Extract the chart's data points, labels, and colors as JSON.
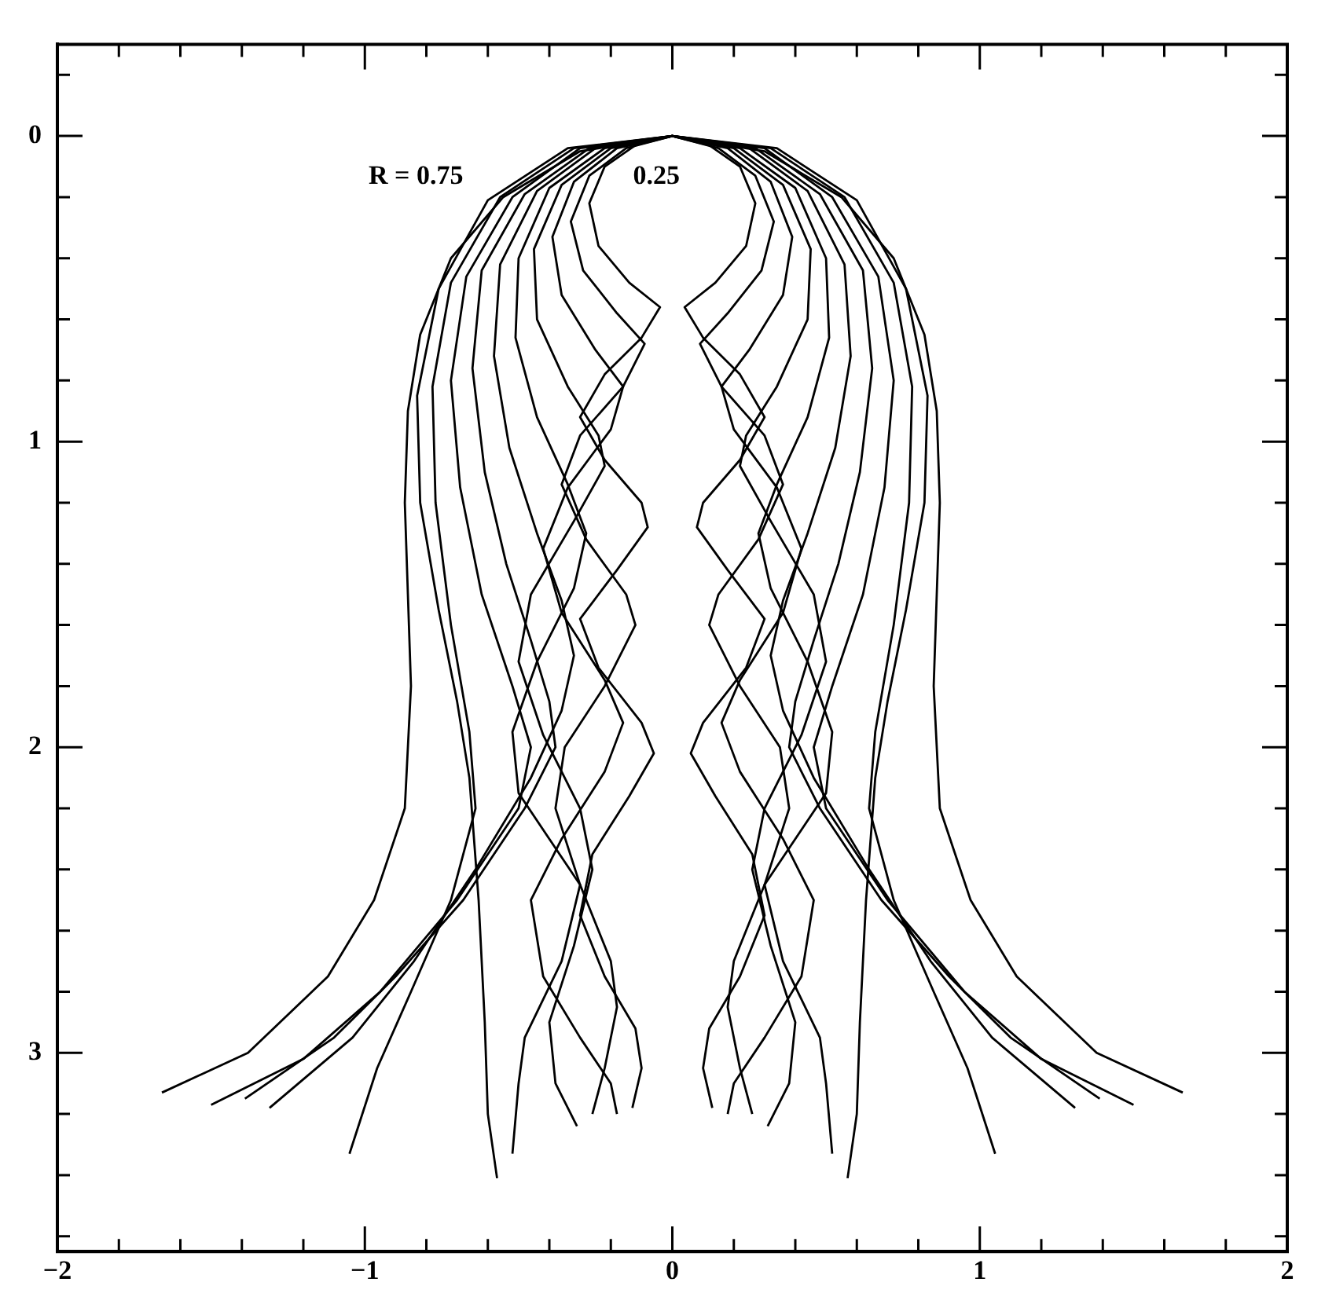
{
  "chart_data": {
    "type": "line",
    "xlim": [
      -2,
      2
    ],
    "ylim": [
      3.65,
      -0.3
    ],
    "xticks": [
      -2,
      {
        "value": -1.8,
        "label": null
      },
      {
        "value": -1.6,
        "label": null
      },
      {
        "value": -1.4,
        "label": null
      },
      {
        "value": -1.2,
        "label": null
      },
      -1,
      {
        "value": -0.8,
        "label": null
      },
      {
        "value": -0.6,
        "label": null
      },
      {
        "value": -0.4,
        "label": null
      },
      {
        "value": -0.2,
        "label": null
      },
      0,
      {
        "value": 0.2,
        "label": null
      },
      {
        "value": 0.4,
        "label": null
      },
      {
        "value": 0.6,
        "label": null
      },
      {
        "value": 0.8,
        "label": null
      },
      1,
      {
        "value": 1.2,
        "label": null
      },
      {
        "value": 1.4,
        "label": null
      },
      {
        "value": 1.6,
        "label": null
      },
      {
        "value": 1.8,
        "label": null
      },
      2
    ],
    "yticks": [
      {
        "value": -0.2,
        "label": null
      },
      0,
      {
        "value": 0.2,
        "label": null
      },
      {
        "value": 0.4,
        "label": null
      },
      {
        "value": 0.6,
        "label": null
      },
      {
        "value": 0.8,
        "label": null
      },
      1,
      {
        "value": 1.2,
        "label": null
      },
      {
        "value": 1.4,
        "label": null
      },
      {
        "value": 1.6,
        "label": null
      },
      {
        "value": 1.8,
        "label": null
      },
      2,
      {
        "value": 2.2,
        "label": null
      },
      {
        "value": 2.4,
        "label": null
      },
      {
        "value": 2.6,
        "label": null
      },
      {
        "value": 2.8,
        "label": null
      },
      3,
      {
        "value": 3.2,
        "label": null
      },
      {
        "value": 3.4,
        "label": null
      },
      {
        "value": 3.6,
        "label": null
      }
    ],
    "grid": false,
    "legend": false,
    "marker": "none",
    "line_style": "solid",
    "annotations": [
      "R = 0.75",
      "0.25"
    ],
    "series": [
      {
        "color": "#000000",
        "x": [
          -1.66,
          -1.38,
          -1.12,
          -0.97,
          -0.87,
          -0.85,
          -0.86,
          -0.87,
          -0.86,
          -0.82,
          -0.72,
          -0.55,
          -0.3,
          0,
          0.3,
          0.55,
          0.72,
          0.82,
          0.86,
          0.87,
          0.86,
          0.85,
          0.87,
          0.97,
          1.12,
          1.38,
          1.66
        ],
        "values": [
          3.13,
          3.0,
          2.75,
          2.5,
          2.2,
          1.8,
          1.5,
          1.2,
          0.9,
          0.65,
          0.4,
          0.2,
          0.05,
          0,
          0.05,
          0.2,
          0.4,
          0.65,
          0.9,
          1.2,
          1.5,
          1.8,
          2.2,
          2.5,
          2.75,
          3.0,
          3.13
        ]
      },
      {
        "color": "#000000",
        "x": [
          -0.57,
          -0.6,
          -0.61,
          -0.63,
          -0.66,
          -0.7,
          -0.76,
          -0.82,
          -0.83,
          -0.76,
          -0.6,
          -0.34,
          0,
          0.34,
          0.6,
          0.76,
          0.83,
          0.82,
          0.76,
          0.7,
          0.66,
          0.63,
          0.61,
          0.6,
          0.57
        ],
        "values": [
          3.41,
          3.2,
          2.9,
          2.5,
          2.1,
          1.85,
          1.55,
          1.2,
          0.85,
          0.5,
          0.21,
          0.04,
          0,
          0.04,
          0.21,
          0.5,
          0.85,
          1.2,
          1.55,
          1.85,
          2.1,
          2.5,
          2.9,
          3.2,
          3.41
        ]
      },
      {
        "color": "#000000",
        "x": [
          -1.05,
          -0.96,
          -0.85,
          -0.72,
          -0.64,
          -0.66,
          -0.72,
          -0.77,
          -0.78,
          -0.72,
          -0.56,
          -0.32,
          0,
          0.32,
          0.56,
          0.72,
          0.78,
          0.77,
          0.72,
          0.66,
          0.64,
          0.72,
          0.85,
          0.96,
          1.05
        ],
        "values": [
          3.33,
          3.05,
          2.8,
          2.5,
          2.2,
          1.95,
          1.6,
          1.2,
          0.82,
          0.48,
          0.2,
          0.04,
          0,
          0.04,
          0.2,
          0.48,
          0.82,
          1.2,
          1.6,
          1.95,
          2.2,
          2.5,
          2.8,
          3.05,
          3.33
        ]
      },
      {
        "color": "#000000",
        "x": [
          -1.5,
          -1.2,
          -0.95,
          -0.7,
          -0.5,
          -0.46,
          -0.52,
          -0.62,
          -0.69,
          -0.72,
          -0.67,
          -0.52,
          -0.3,
          0,
          0.3,
          0.52,
          0.67,
          0.72,
          0.69,
          0.62,
          0.52,
          0.46,
          0.5,
          0.7,
          0.95,
          1.2,
          1.5
        ],
        "values": [
          3.17,
          3.02,
          2.8,
          2.5,
          2.2,
          2.0,
          1.8,
          1.5,
          1.15,
          0.8,
          0.46,
          0.2,
          0.04,
          0,
          0.04,
          0.2,
          0.46,
          0.8,
          1.15,
          1.5,
          1.8,
          2.0,
          2.2,
          2.5,
          2.8,
          3.02,
          3.17
        ]
      },
      {
        "color": "#000000",
        "x": [
          -1.39,
          -1.1,
          -0.9,
          -0.68,
          -0.48,
          -0.38,
          -0.4,
          -0.46,
          -0.54,
          -0.61,
          -0.65,
          -0.62,
          -0.48,
          -0.27,
          0,
          0.27,
          0.48,
          0.62,
          0.65,
          0.61,
          0.54,
          0.46,
          0.4,
          0.38,
          0.48,
          0.68,
          0.9,
          1.1,
          1.39
        ],
        "values": [
          3.15,
          2.95,
          2.75,
          2.5,
          2.2,
          2.0,
          1.85,
          1.65,
          1.4,
          1.1,
          0.76,
          0.44,
          0.19,
          0.04,
          0,
          0.04,
          0.19,
          0.44,
          0.76,
          1.1,
          1.4,
          1.65,
          1.85,
          2.0,
          2.2,
          2.5,
          2.75,
          2.95,
          3.15
        ]
      },
      {
        "color": "#000000",
        "x": [
          -1.31,
          -1.04,
          -0.84,
          -0.64,
          -0.46,
          -0.36,
          -0.32,
          -0.36,
          -0.44,
          -0.53,
          -0.58,
          -0.56,
          -0.44,
          -0.25,
          0,
          0.25,
          0.44,
          0.56,
          0.58,
          0.53,
          0.44,
          0.36,
          0.32,
          0.36,
          0.46,
          0.64,
          0.84,
          1.04,
          1.31
        ],
        "values": [
          3.18,
          2.95,
          2.7,
          2.4,
          2.1,
          1.88,
          1.7,
          1.52,
          1.3,
          1.02,
          0.72,
          0.42,
          0.18,
          0.04,
          0,
          0.04,
          0.18,
          0.42,
          0.72,
          1.02,
          1.3,
          1.52,
          1.7,
          1.88,
          2.1,
          2.4,
          2.7,
          2.95,
          3.18
        ]
      },
      {
        "color": "#000000",
        "x": [
          -0.52,
          -0.5,
          -0.48,
          -0.36,
          -0.3,
          -0.4,
          -0.5,
          -0.52,
          -0.44,
          -0.32,
          -0.28,
          -0.34,
          -0.44,
          -0.51,
          -0.5,
          -0.4,
          -0.22,
          0,
          0.22,
          0.4,
          0.5,
          0.51,
          0.44,
          0.34,
          0.28,
          0.32,
          0.44,
          0.52,
          0.5,
          0.4,
          0.3,
          0.36,
          0.48,
          0.5,
          0.52
        ],
        "values": [
          3.33,
          3.1,
          2.95,
          2.7,
          2.45,
          2.3,
          2.15,
          1.95,
          1.72,
          1.48,
          1.3,
          1.14,
          0.92,
          0.66,
          0.4,
          0.17,
          0.04,
          0,
          0.04,
          0.17,
          0.4,
          0.66,
          0.92,
          1.14,
          1.3,
          1.48,
          1.72,
          1.95,
          2.15,
          2.3,
          2.45,
          2.7,
          2.95,
          3.1,
          3.33
        ]
      },
      {
        "color": "#000000",
        "x": [
          -0.31,
          -0.38,
          -0.4,
          -0.32,
          -0.26,
          -0.3,
          -0.42,
          -0.5,
          -0.46,
          -0.32,
          -0.22,
          -0.24,
          -0.34,
          -0.44,
          -0.45,
          -0.36,
          -0.2,
          0,
          0.2,
          0.36,
          0.45,
          0.44,
          0.34,
          0.24,
          0.22,
          0.32,
          0.46,
          0.5,
          0.42,
          0.3,
          0.26,
          0.32,
          0.4,
          0.38,
          0.31
        ],
        "values": [
          3.24,
          3.1,
          2.9,
          2.65,
          2.4,
          2.2,
          1.96,
          1.72,
          1.5,
          1.26,
          1.08,
          0.98,
          0.82,
          0.6,
          0.37,
          0.16,
          0.04,
          0,
          0.04,
          0.16,
          0.37,
          0.6,
          0.82,
          0.98,
          1.08,
          1.26,
          1.5,
          1.72,
          1.96,
          2.2,
          2.4,
          2.65,
          2.9,
          3.1,
          3.24
        ]
      },
      {
        "color": "#000000",
        "x": [
          -0.18,
          -0.2,
          -0.3,
          -0.42,
          -0.46,
          -0.36,
          -0.22,
          -0.16,
          -0.22,
          -0.36,
          -0.42,
          -0.34,
          -0.2,
          -0.16,
          -0.25,
          -0.36,
          -0.39,
          -0.32,
          -0.18,
          0,
          0.18,
          0.32,
          0.39,
          0.36,
          0.25,
          0.16,
          0.2,
          0.34,
          0.42,
          0.36,
          0.22,
          0.16,
          0.22,
          0.36,
          0.46,
          0.42,
          0.3,
          0.2,
          0.18
        ],
        "values": [
          3.2,
          3.1,
          2.95,
          2.75,
          2.5,
          2.3,
          2.08,
          1.92,
          1.78,
          1.56,
          1.35,
          1.15,
          0.96,
          0.82,
          0.7,
          0.52,
          0.33,
          0.15,
          0.04,
          0,
          0.04,
          0.15,
          0.33,
          0.52,
          0.7,
          0.82,
          0.96,
          1.15,
          1.35,
          1.56,
          1.78,
          1.92,
          2.08,
          2.3,
          2.5,
          2.75,
          2.95,
          3.1,
          3.2
        ]
      },
      {
        "color": "#000000",
        "x": [
          -0.26,
          -0.22,
          -0.18,
          -0.2,
          -0.3,
          -0.38,
          -0.35,
          -0.22,
          -0.12,
          -0.15,
          -0.28,
          -0.36,
          -0.3,
          -0.16,
          -0.09,
          -0.18,
          -0.29,
          -0.33,
          -0.27,
          -0.15,
          0,
          0.15,
          0.27,
          0.33,
          0.29,
          0.18,
          0.09,
          0.16,
          0.3,
          0.36,
          0.28,
          0.15,
          0.12,
          0.22,
          0.35,
          0.38,
          0.3,
          0.2,
          0.18,
          0.22,
          0.26
        ],
        "values": [
          3.2,
          3.05,
          2.85,
          2.7,
          2.45,
          2.2,
          2.0,
          1.8,
          1.6,
          1.5,
          1.32,
          1.14,
          0.98,
          0.82,
          0.68,
          0.58,
          0.44,
          0.28,
          0.13,
          0.04,
          0,
          0.04,
          0.13,
          0.28,
          0.44,
          0.58,
          0.68,
          0.82,
          0.98,
          1.14,
          1.32,
          1.5,
          1.6,
          1.8,
          2.0,
          2.2,
          2.45,
          2.7,
          2.85,
          3.05,
          3.2
        ]
      },
      {
        "color": "#000000",
        "x": [
          -0.13,
          -0.1,
          -0.12,
          -0.22,
          -0.3,
          -0.26,
          -0.14,
          -0.06,
          -0.1,
          -0.24,
          -0.3,
          -0.18,
          -0.08,
          -0.1,
          -0.22,
          -0.3,
          -0.22,
          -0.1,
          -0.04,
          -0.14,
          -0.24,
          -0.27,
          -0.22,
          -0.12,
          0,
          0.12,
          0.22,
          0.27,
          0.24,
          0.14,
          0.04,
          0.1,
          0.22,
          0.3,
          0.22,
          0.1,
          0.08,
          0.18,
          0.3,
          0.24,
          0.1,
          0.06,
          0.14,
          0.26,
          0.3,
          0.22,
          0.12,
          0.1,
          0.13
        ],
        "values": [
          3.18,
          3.05,
          2.92,
          2.75,
          2.55,
          2.35,
          2.16,
          2.02,
          1.92,
          1.74,
          1.58,
          1.42,
          1.28,
          1.2,
          1.06,
          0.92,
          0.78,
          0.66,
          0.56,
          0.48,
          0.36,
          0.22,
          0.1,
          0.03,
          0,
          0.03,
          0.1,
          0.22,
          0.36,
          0.48,
          0.56,
          0.66,
          0.78,
          0.92,
          1.06,
          1.2,
          1.28,
          1.42,
          1.58,
          1.74,
          1.92,
          2.02,
          2.16,
          2.35,
          2.55,
          2.75,
          2.92,
          3.05,
          3.18
        ]
      }
    ]
  }
}
